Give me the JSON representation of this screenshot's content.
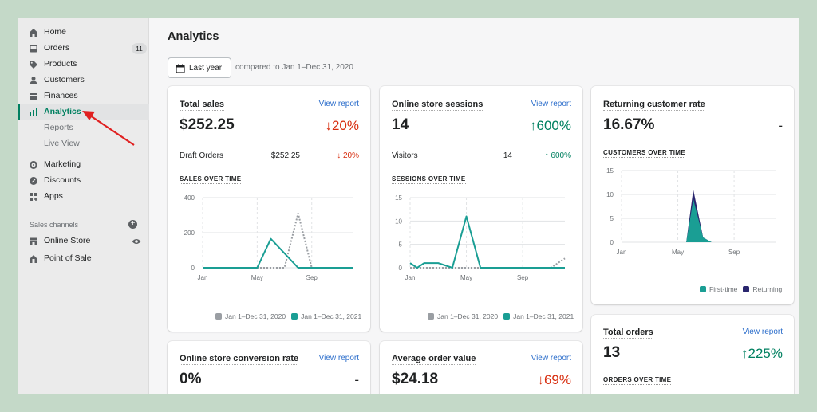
{
  "sidebar": {
    "items": [
      {
        "label": "Home",
        "icon": "home-icon"
      },
      {
        "label": "Orders",
        "icon": "orders-icon",
        "badge": "11"
      },
      {
        "label": "Products",
        "icon": "tag-icon"
      },
      {
        "label": "Customers",
        "icon": "person-icon"
      },
      {
        "label": "Finances",
        "icon": "finances-icon"
      },
      {
        "label": "Analytics",
        "icon": "bar-chart-icon"
      },
      {
        "label": "Reports"
      },
      {
        "label": "Live View"
      },
      {
        "label": "Marketing",
        "icon": "target-icon"
      },
      {
        "label": "Discounts",
        "icon": "discount-icon"
      },
      {
        "label": "Apps",
        "icon": "apps-icon"
      }
    ],
    "sales_channels_label": "Sales channels",
    "channels": [
      {
        "label": "Online Store",
        "icon": "store-icon"
      },
      {
        "label": "Point of Sale",
        "icon": "pos-icon"
      }
    ]
  },
  "main": {
    "title": "Analytics",
    "date_button": "Last year",
    "compare_text": "compared to Jan 1–Dec 31, 2020"
  },
  "view_report_label": "View report",
  "cards": {
    "total_sales": {
      "title": "Total sales",
      "value": "$252.25",
      "delta": "20%",
      "row_label": "Draft Orders",
      "row_value": "$252.25",
      "row_delta": "20%",
      "chart_title": "SALES OVER TIME"
    },
    "sessions": {
      "title": "Online store sessions",
      "value": "14",
      "delta": "600%",
      "row_label": "Visitors",
      "row_value": "14",
      "row_delta": "600%",
      "chart_title": "SESSIONS OVER TIME"
    },
    "returning": {
      "title": "Returning customer rate",
      "value": "16.67%",
      "delta": "-",
      "chart_title": "CUSTOMERS OVER TIME"
    },
    "total_orders": {
      "title": "Total orders",
      "value": "13",
      "delta": "225%",
      "chart_title": "ORDERS OVER TIME"
    },
    "conversion": {
      "title": "Online store conversion rate",
      "value": "0%",
      "delta": "-"
    },
    "aov": {
      "title": "Average order value",
      "value": "$24.18",
      "delta": "69%"
    }
  },
  "colors": {
    "accent": "#008060",
    "current": "#1a9e94",
    "previous": "#9a9ea3",
    "returning": "#29266e",
    "down": "#d72c0d"
  },
  "chart_data": [
    {
      "type": "line",
      "ylim": [
        0,
        400
      ],
      "ytick_labels": [
        "0",
        "200",
        "400"
      ],
      "x_tick_labels": [
        "Jan",
        "May",
        "Sep"
      ],
      "series": [
        {
          "name": "Jan 1–Dec 31, 2020",
          "style": "dotted",
          "x": [
            0,
            6,
            7,
            8,
            11
          ],
          "values": [
            0,
            0,
            310,
            0,
            0
          ]
        },
        {
          "name": "Jan 1–Dec 31, 2021",
          "style": "solid",
          "x": [
            0,
            4,
            5,
            7,
            11
          ],
          "values": [
            0,
            0,
            165,
            0,
            0
          ]
        }
      ]
    },
    {
      "type": "line",
      "ylim": [
        0,
        15
      ],
      "ytick_labels": [
        "0",
        "5",
        "10",
        "15"
      ],
      "x_tick_labels": [
        "Jan",
        "May",
        "Sep"
      ],
      "series": [
        {
          "name": "Jan 1–Dec 31, 2020",
          "style": "dotted",
          "x": [
            0,
            10,
            11
          ],
          "values": [
            0,
            0,
            2
          ]
        },
        {
          "name": "Jan 1–Dec 31, 2021",
          "style": "solid",
          "x": [
            0,
            0.5,
            1,
            2,
            3,
            4,
            5,
            6,
            7,
            8,
            9,
            10,
            11
          ],
          "values": [
            1,
            0,
            1,
            1,
            0,
            11,
            0,
            0,
            0,
            0,
            0,
            0,
            0
          ]
        }
      ]
    },
    {
      "type": "area",
      "ylim": [
        0,
        15
      ],
      "ytick_labels": [
        "0",
        "5",
        "10",
        "15"
      ],
      "x_tick_labels": [
        "Jan",
        "May",
        "Sep"
      ],
      "series": [
        {
          "name": "First-time",
          "x": [
            4.6,
            5.1,
            5.8,
            6.4
          ],
          "values": [
            0,
            9,
            1,
            0
          ]
        },
        {
          "name": "Returning",
          "x": [
            4.6,
            5.1,
            5.8,
            6.4
          ],
          "values": [
            0,
            2,
            0,
            0
          ]
        }
      ]
    }
  ]
}
